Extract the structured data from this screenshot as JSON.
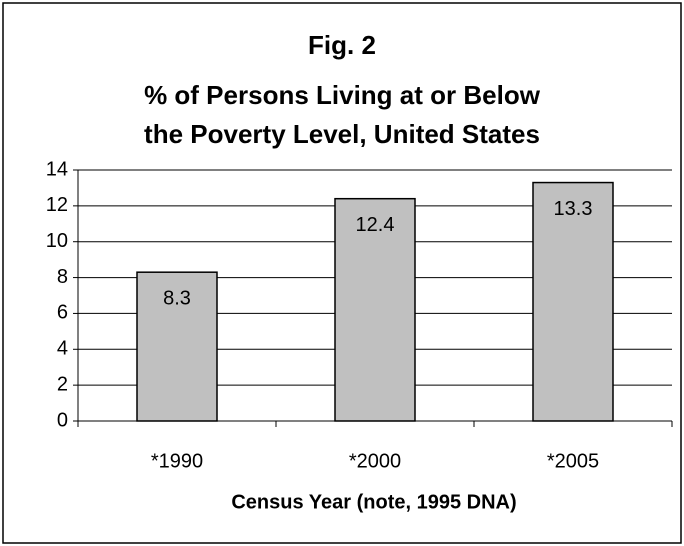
{
  "chart_data": {
    "type": "bar",
    "title": [
      "Fig. 2",
      "% of Persons Living at or Below",
      "the Poverty Level, United States"
    ],
    "categories": [
      "*1990",
      "*2000",
      "*2005"
    ],
    "values": [
      8.3,
      12.4,
      13.3
    ],
    "color": "#c0c0c0",
    "xlabel": "Census Year (note, 1995 DNA)",
    "ylim": [
      0,
      14
    ],
    "yticks": [
      0,
      2,
      4,
      6,
      8,
      10,
      12,
      14
    ],
    "grid": true
  }
}
